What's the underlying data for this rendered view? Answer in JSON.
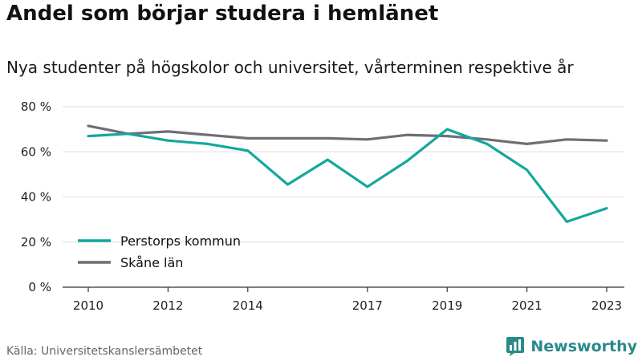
{
  "title": "Andel som börjar studera i hemlänet",
  "subtitle": "Nya studenter på högskolor och universitet, vårterminen respektive år",
  "source": "Källa: Universitetskanslersämbetet",
  "brand": {
    "name": "Newsworthy",
    "icon": "newsworthy-logo-icon"
  },
  "colors": {
    "series1": "#12a89d",
    "series2": "#6f6d76",
    "axis": "#333333",
    "grid": "#dddddd",
    "brand": "#2a8a8a"
  },
  "chart_data": {
    "type": "line",
    "title": "Andel som börjar studera i hemlänet",
    "subtitle": "Nya studenter på högskolor och universitet, vårterminen respektive år",
    "x": [
      2010,
      2011,
      2012,
      2013,
      2014,
      2015,
      2016,
      2017,
      2018,
      2019,
      2020,
      2021,
      2022,
      2023
    ],
    "x_ticks": [
      "2010",
      "2012",
      "2014",
      "2017",
      "2019",
      "2021",
      "2023"
    ],
    "y_ticks": [
      "0 %",
      "20 %",
      "40 %",
      "60 %",
      "80 %"
    ],
    "ylim": [
      0,
      80
    ],
    "grid": true,
    "legend_position": "bottom-left",
    "series": [
      {
        "name": "Perstorps kommun",
        "color": "#12a89d",
        "values": [
          67,
          68,
          65,
          63.5,
          60.5,
          45.5,
          56.5,
          44.5,
          56,
          70,
          63.5,
          52,
          29,
          35
        ]
      },
      {
        "name": "Skåne län",
        "color": "#6f6d76",
        "values": [
          71.5,
          68,
          69,
          67.5,
          66,
          66,
          66,
          65.5,
          67.5,
          67,
          65.5,
          63.5,
          65.5,
          65
        ]
      }
    ]
  }
}
